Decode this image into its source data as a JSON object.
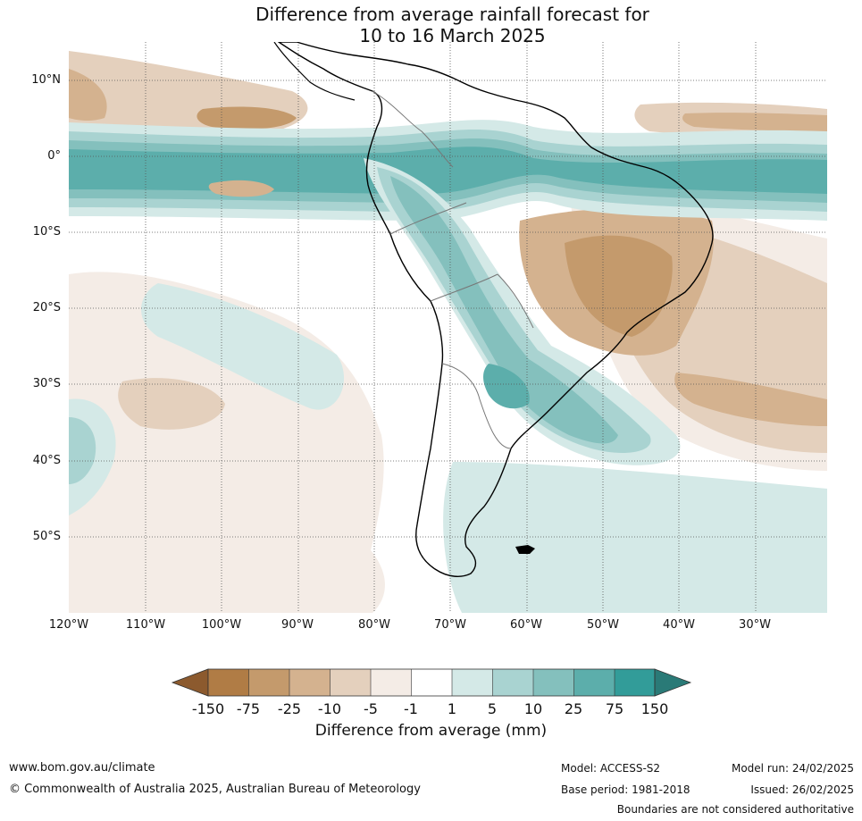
{
  "title": {
    "line1": "Difference from average rainfall forecast for",
    "line2": "10 to 16 March 2025"
  },
  "map": {
    "lat_labels": [
      "10°N",
      "0°",
      "10°S",
      "20°S",
      "30°S",
      "40°S",
      "50°S"
    ],
    "lon_labels": [
      "120°W",
      "110°W",
      "100°W",
      "90°W",
      "80°W",
      "70°W",
      "60°W",
      "50°W",
      "40°W",
      "30°W"
    ],
    "colors": {
      "below_150": "#8c5a2e",
      "m150_m75": "#b07c45",
      "m75_m25": "#c49a6c",
      "m25_m10": "#d4b28f",
      "m10_m5": "#e4d0bd",
      "m5_m1": "#f4ece6",
      "m1_1": "#ffffff",
      "p1_5": "#d4e9e7",
      "p5_10": "#a9d3d1",
      "p10_25": "#84c0bd",
      "p25_75": "#5caeab",
      "p75_150": "#329c99",
      "above_150": "#2a7a77"
    }
  },
  "colorbar": {
    "ticks": [
      "-150",
      "-75",
      "-25",
      "-10",
      "-5",
      "-1",
      "1",
      "5",
      "10",
      "25",
      "75",
      "150"
    ],
    "label": "Difference from average (mm)"
  },
  "footer": {
    "website": "www.bom.gov.au/climate",
    "copyright": "© Commonwealth of Australia 2025, Australian Bureau of Meteorology",
    "model": "Model: ACCESS-S2",
    "base_period": "Base period: 1981-2018",
    "model_run": "Model run: 24/02/2025",
    "issued": "Issued: 26/02/2025",
    "boundaries": "Boundaries are not considered authoritative"
  }
}
